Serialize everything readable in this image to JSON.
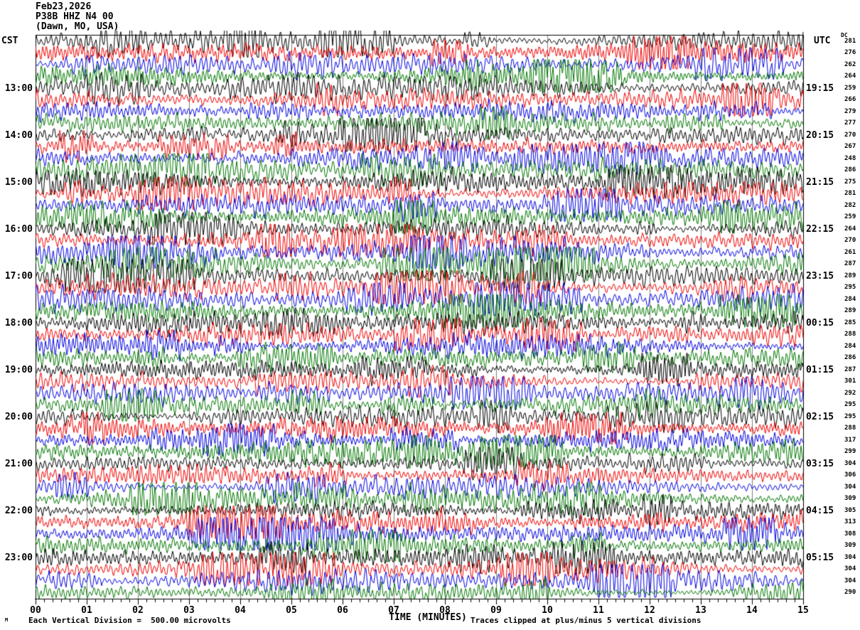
{
  "header": {
    "date": "Feb23,2026",
    "station": "P38B HHZ N4 00",
    "location": "(Dawn, MO, USA)"
  },
  "left_axis": {
    "label": "CST",
    "times": [
      "13:00",
      "14:00",
      "15:00",
      "16:00",
      "17:00",
      "18:00",
      "19:00",
      "20:00",
      "21:00",
      "22:00",
      "23:00"
    ]
  },
  "right_axis": {
    "label": "UTC",
    "dc_label": "DC",
    "times": [
      "19:15",
      "20:15",
      "21:15",
      "22:15",
      "23:15",
      "00:15",
      "01:15",
      "02:15",
      "03:15",
      "04:15",
      "05:15"
    ],
    "dc_values": [
      281,
      276,
      262,
      264,
      259,
      266,
      279,
      277,
      270,
      267,
      248,
      286,
      275,
      281,
      282,
      259,
      264,
      270,
      261,
      287,
      289,
      295,
      284,
      289,
      285,
      288,
      284,
      286,
      287,
      301,
      292,
      295,
      295,
      288,
      317,
      299,
      304,
      306,
      304,
      309,
      305,
      313,
      308,
      309,
      304,
      304,
      304,
      290
    ]
  },
  "x_axis": {
    "label": "TIME (MINUTES)",
    "tick_labels": [
      "00",
      "01",
      "02",
      "03",
      "04",
      "05",
      "06",
      "07",
      "08",
      "09",
      "10",
      "11",
      "12",
      "13",
      "14",
      "15"
    ]
  },
  "footer": {
    "glyph": "M",
    "scale_note": "Each Vertical Division =  500.00 microvolts",
    "clip_note": "Traces clipped at plus/minus 5 vertical divisions"
  },
  "chart_data": {
    "type": "line",
    "subtype": "helicorder-seismogram",
    "title": "P38B HHZ N4 00 (Dawn, MO, USA) Feb23,2026",
    "rows": 48,
    "minutes_per_row": 15,
    "x_range_minutes": [
      0,
      15
    ],
    "x_tick_labels": [
      "00",
      "01",
      "02",
      "03",
      "04",
      "05",
      "06",
      "07",
      "08",
      "09",
      "10",
      "11",
      "12",
      "13",
      "14",
      "15"
    ],
    "xlabel": "TIME (MINUTES)",
    "first_row_start_cst": "12:00",
    "left_time_labels_cst": [
      "13:00",
      "14:00",
      "15:00",
      "16:00",
      "17:00",
      "18:00",
      "19:00",
      "20:00",
      "21:00",
      "22:00",
      "23:00"
    ],
    "right_time_labels_utc": [
      "19:15",
      "20:15",
      "21:15",
      "22:15",
      "23:15",
      "00:15",
      "01:15",
      "02:15",
      "03:15",
      "04:15",
      "05:15"
    ],
    "labeled_row_interval": 4,
    "first_labeled_row_index": 4,
    "dc_offsets_per_row": [
      281,
      276,
      262,
      264,
      259,
      266,
      279,
      277,
      270,
      267,
      248,
      286,
      275,
      281,
      282,
      259,
      264,
      270,
      261,
      287,
      289,
      295,
      284,
      289,
      285,
      288,
      284,
      286,
      287,
      301,
      292,
      295,
      295,
      288,
      317,
      299,
      304,
      306,
      304,
      309,
      305,
      313,
      308,
      309,
      304,
      304,
      304,
      290
    ],
    "trace_color_cycle": [
      "#000000",
      "#ee0000",
      "#0000dd",
      "#007700"
    ],
    "grid_color": "#7e7e7e",
    "border_color": "#000000",
    "vertical_division_microvolts": 500.0,
    "clip_divisions": 5,
    "grid": "vertical-lines-each-minute",
    "legend": "none"
  }
}
